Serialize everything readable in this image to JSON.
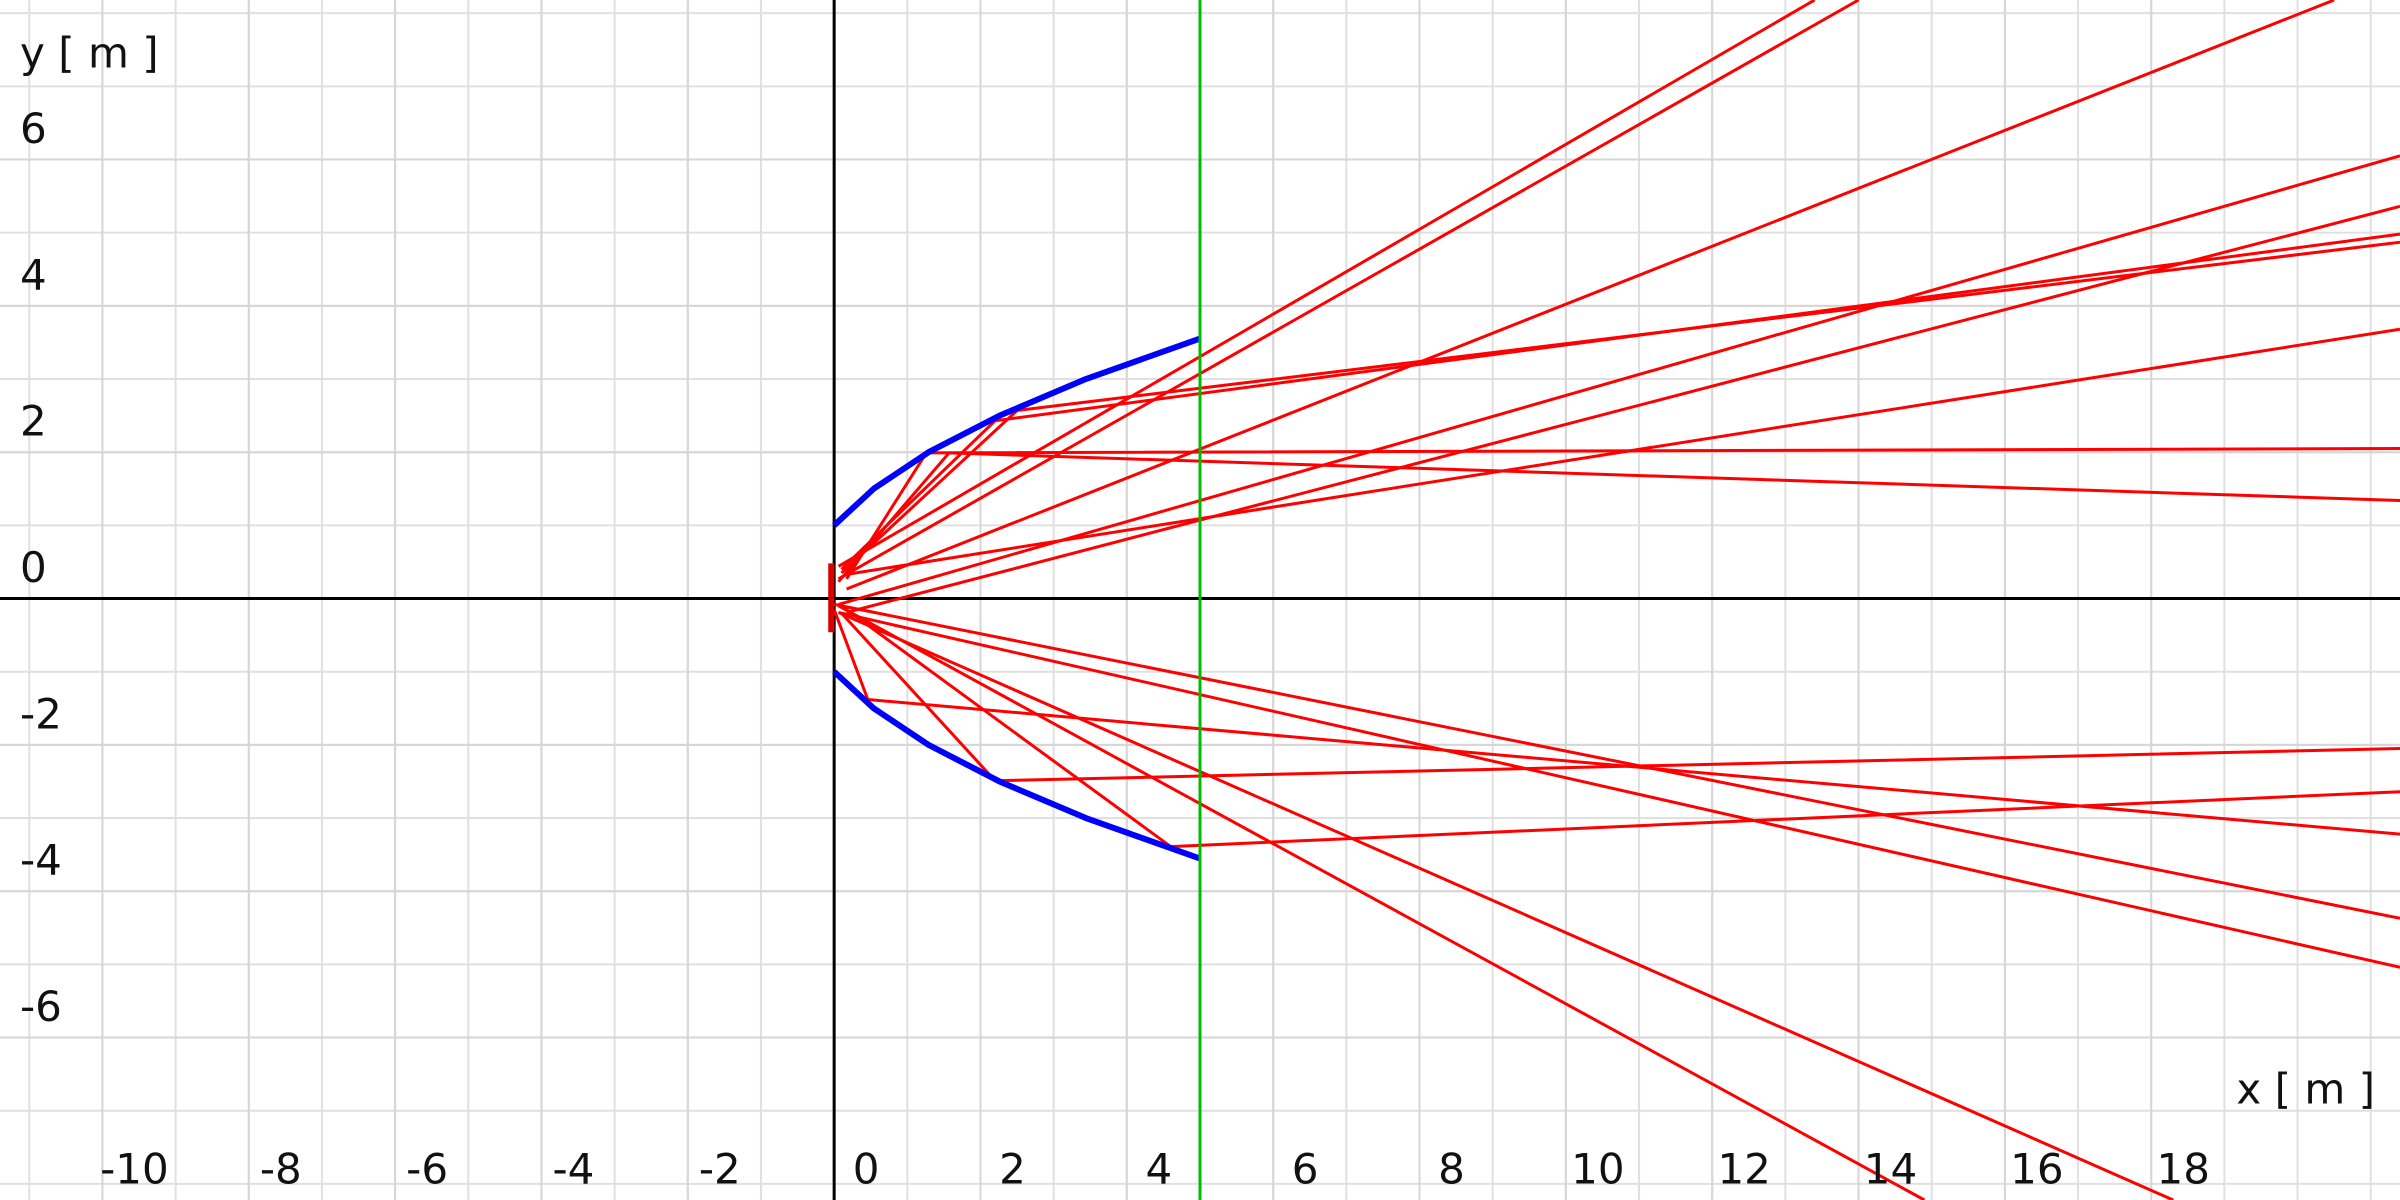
{
  "chart_data": {
    "type": "line",
    "xlabel": "x [ m ]",
    "ylabel": "y [ m ]",
    "xlim": [
      -11.4,
      21.4
    ],
    "ylim": [
      -8.22,
      8.18
    ],
    "xticks": [
      -10,
      -8,
      -6,
      -4,
      -2,
      0,
      2,
      4,
      6,
      8,
      10,
      12,
      14,
      16,
      18
    ],
    "yticks": [
      -6,
      -4,
      -2,
      0,
      2,
      4,
      6
    ],
    "grid": true,
    "minor_grid": 1,
    "series": [
      {
        "color": "#ff0000",
        "width": 3,
        "x": [
          0.17,
          1.26,
          21.4
        ],
        "values": [
          0.27,
          1.99,
          2.05
        ]
      },
      {
        "color": "#ff0000",
        "width": 3,
        "x": [
          0.06,
          1.57,
          21.4
        ],
        "values": [
          0.23,
          1.99,
          1.34
        ]
      },
      {
        "color": "#ff0000",
        "width": 3,
        "x": [
          0.1,
          2.2,
          21.4
        ],
        "values": [
          0.4,
          2.43,
          4.98
        ]
      },
      {
        "color": "#ff0000",
        "width": 3,
        "x": [
          0.1,
          2.5,
          21.4
        ],
        "values": [
          0.35,
          2.57,
          4.87
        ]
      },
      {
        "color": "#ff0000",
        "width": 3,
        "x": [
          0.06,
          13.4
        ],
        "values": [
          0.44,
          8.18
        ]
      },
      {
        "color": "#ff0000",
        "width": 3,
        "x": [
          0.06,
          14
        ],
        "values": [
          0.27,
          8.18
        ]
      },
      {
        "color": "#ff0000",
        "width": 3,
        "x": [
          0.17,
          20.5
        ],
        "values": [
          0.13,
          8.18
        ]
      },
      {
        "color": "#ff0000",
        "width": 3,
        "x": [
          0.06,
          21.4
        ],
        "values": [
          -0.08,
          6.05
        ]
      },
      {
        "color": "#ff0000",
        "width": 3,
        "x": [
          0.17,
          21.4
        ],
        "values": [
          -0.19,
          5.36
        ]
      },
      {
        "color": "#ff0000",
        "width": 3,
        "x": [
          0.17,
          21.4
        ],
        "values": [
          0.33,
          3.68
        ]
      },
      {
        "color": "#ff0000",
        "width": 3,
        "x": [
          0.0,
          0.46,
          21.4
        ],
        "values": [
          -0.15,
          -1.38,
          -3.22
        ]
      },
      {
        "color": "#ff0000",
        "width": 3,
        "x": [
          0.1,
          2.2,
          21.4
        ],
        "values": [
          -0.2,
          -2.49,
          -2.05
        ]
      },
      {
        "color": "#ff0000",
        "width": 3,
        "x": [
          0.1,
          4.6,
          21.4
        ],
        "values": [
          -0.1,
          -3.39,
          -2.64
        ]
      },
      {
        "color": "#ff0000",
        "width": 3,
        "x": [
          0.0,
          21.4
        ],
        "values": [
          -0.08,
          -4.37
        ]
      },
      {
        "color": "#ff0000",
        "width": 3,
        "x": [
          0.06,
          21.4
        ],
        "values": [
          -0.19,
          -5.04
        ]
      },
      {
        "color": "#ff0000",
        "width": 3,
        "x": [
          0.06,
          18.3
        ],
        "values": [
          -0.19,
          -8.22
        ]
      },
      {
        "color": "#ff0000",
        "width": 3,
        "x": [
          0.06,
          14.9
        ],
        "values": [
          -0.1,
          -8.22
        ]
      },
      {
        "color": "#0000ff",
        "width": 6,
        "x": [
          0,
          0.54,
          1.29,
          2.26,
          3.44,
          4.99
        ],
        "values": [
          1,
          1.5,
          2,
          2.5,
          3,
          3.55
        ]
      },
      {
        "color": "#0000ff",
        "width": 6,
        "x": [
          0,
          0.54,
          1.29,
          2.26,
          3.44,
          4.99
        ],
        "values": [
          -1,
          -1.5,
          -2,
          -2.5,
          -3,
          -3.55
        ]
      },
      {
        "color": "#00bb00",
        "width": 3,
        "x": [
          5,
          5
        ],
        "values": [
          -8.22,
          8.18
        ]
      },
      {
        "color": "#dd0000",
        "width": 6,
        "x": [
          -0.04,
          -0.04
        ],
        "values": [
          0.48,
          -0.46
        ]
      }
    ]
  }
}
